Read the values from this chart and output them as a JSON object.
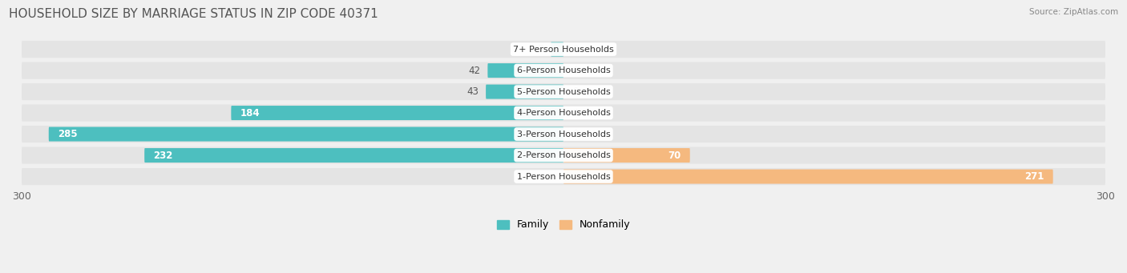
{
  "title": "HOUSEHOLD SIZE BY MARRIAGE STATUS IN ZIP CODE 40371",
  "source": "Source: ZipAtlas.com",
  "categories": [
    "7+ Person Households",
    "6-Person Households",
    "5-Person Households",
    "4-Person Households",
    "3-Person Households",
    "2-Person Households",
    "1-Person Households"
  ],
  "family_values": [
    7,
    42,
    43,
    184,
    285,
    232,
    0
  ],
  "nonfamily_values": [
    0,
    0,
    0,
    0,
    0,
    70,
    271
  ],
  "family_color": "#4dbfbf",
  "nonfamily_color": "#f5b97f",
  "background_color": "#f0f0f0",
  "bar_bg_color": "#e4e4e4",
  "xlim": 300,
  "bar_height": 0.68,
  "title_fontsize": 11,
  "label_fontsize": 8.5,
  "tick_fontsize": 9,
  "cat_label_fontsize": 8.0
}
